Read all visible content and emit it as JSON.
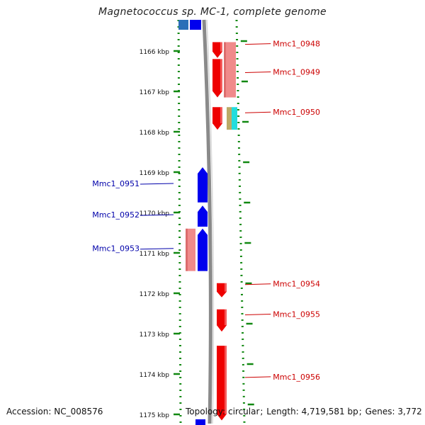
{
  "title": "Magnetococcus sp. MC-1, complete genome",
  "footer": {
    "accession_label": "Accession:",
    "accession": "NC_008576",
    "topology_label": "Topology:",
    "topology": "circular",
    "length_label": "Length:",
    "length": "4,719,581 bp",
    "genes_label": "Genes:",
    "genes": "3,772"
  },
  "colors": {
    "forward_strand": "#ee0000",
    "forward_light": "#f08a8a",
    "reverse_strand": "#0000ee",
    "reverse_light": "#2a6fb8",
    "tick_green": "#118811",
    "backbone": "#8a8a8a",
    "label_forward": "#cc0000",
    "label_reverse": "#0000aa",
    "cyan_feature": "#22dddd",
    "olive_feature": "#bbaa66"
  },
  "ticks": [
    {
      "kbp": 1166,
      "label": "1166 kbp"
    },
    {
      "kbp": 1167,
      "label": "1167 kbp"
    },
    {
      "kbp": 1168,
      "label": "1168 kbp"
    },
    {
      "kbp": 1169,
      "label": "1169 kbp"
    },
    {
      "kbp": 1170,
      "label": "1170 kbp"
    },
    {
      "kbp": 1171,
      "label": "1171 kbp"
    },
    {
      "kbp": 1172,
      "label": "1172 kbp"
    },
    {
      "kbp": 1173,
      "label": "1173 kbp"
    },
    {
      "kbp": 1174,
      "label": "1174 kbp"
    },
    {
      "kbp": 1175,
      "label": "1175 kbp"
    }
  ],
  "genes": [
    {
      "name": "Mmc1_0948",
      "strand": "+",
      "start_kbp": 1165.78,
      "end_kbp": 1166.17
    },
    {
      "name": "Mmc1_0949",
      "strand": "+",
      "start_kbp": 1166.2,
      "end_kbp": 1167.15
    },
    {
      "name": "Mmc1_0950",
      "strand": "+",
      "start_kbp": 1167.39,
      "end_kbp": 1167.95
    },
    {
      "name": "Mmc1_0951",
      "strand": "-",
      "start_kbp": 1168.88,
      "end_kbp": 1169.75
    },
    {
      "name": "Mmc1_0952",
      "strand": "-",
      "start_kbp": 1169.83,
      "end_kbp": 1170.35
    },
    {
      "name": "Mmc1_0953",
      "strand": "-",
      "start_kbp": 1170.4,
      "end_kbp": 1171.45
    },
    {
      "name": "Mmc1_0954",
      "strand": "+",
      "start_kbp": 1171.75,
      "end_kbp": 1172.1
    },
    {
      "name": "Mmc1_0955",
      "strand": "+",
      "start_kbp": 1172.4,
      "end_kbp": 1172.95
    },
    {
      "name": "Mmc1_0956",
      "strand": "+",
      "start_kbp": 1173.3,
      "end_kbp": 1175.15
    }
  ]
}
